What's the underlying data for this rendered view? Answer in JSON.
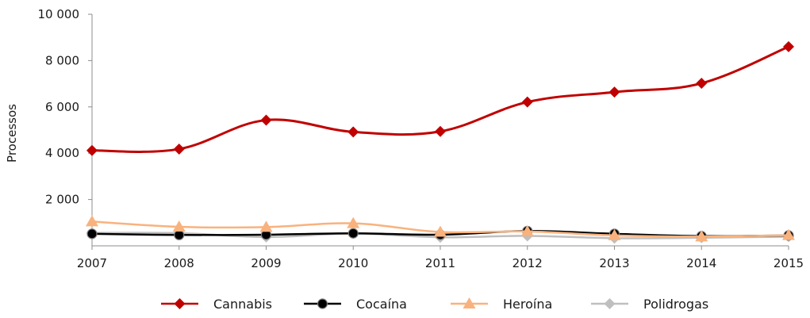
{
  "chart_data": {
    "type": "line",
    "title": "",
    "xlabel": "",
    "ylabel": "Processos",
    "categories": [
      "2007",
      "2008",
      "2009",
      "2010",
      "2011",
      "2012",
      "2013",
      "2014",
      "2015"
    ],
    "ylim": [
      0,
      10000
    ],
    "yticks": [
      {
        "value": 2000,
        "label": "2 000"
      },
      {
        "value": 4000,
        "label": "4 000"
      },
      {
        "value": 6000,
        "label": "6 000"
      },
      {
        "value": 8000,
        "label": "8 000"
      },
      {
        "value": 10000,
        "label": "10 000"
      }
    ],
    "grid": false,
    "legend_position": "bottom",
    "series": [
      {
        "name": "Cannabis",
        "color": "#c00000",
        "marker": "diamond",
        "values": [
          4120,
          4180,
          5430,
          4920,
          4940,
          6210,
          6640,
          7020,
          8600
        ]
      },
      {
        "name": "Cocaína",
        "color": "#000000",
        "marker": "circle",
        "values": [
          520,
          470,
          480,
          540,
          480,
          640,
          520,
          420,
          450
        ]
      },
      {
        "name": "Heroína",
        "color": "#f9b27d",
        "marker": "triangle",
        "values": [
          1050,
          820,
          810,
          970,
          600,
          620,
          450,
          400,
          460
        ]
      },
      {
        "name": "Polidrogas",
        "color": "#bfbfbf",
        "marker": "diamond",
        "values": [
          560,
          550,
          380,
          530,
          370,
          430,
          330,
          350,
          400
        ]
      }
    ]
  }
}
